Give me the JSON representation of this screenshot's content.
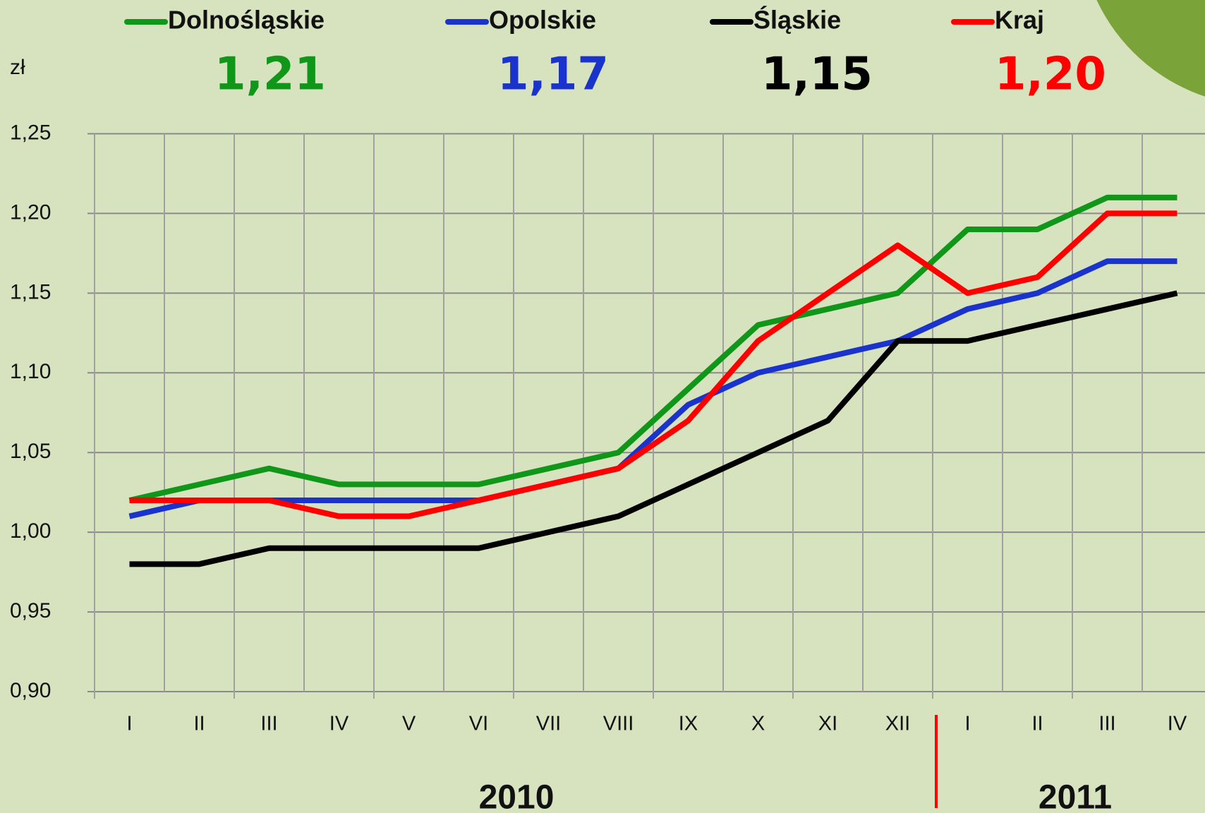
{
  "chart_data": {
    "type": "line",
    "y_unit": "zł",
    "categories": [
      "I",
      "II",
      "III",
      "IV",
      "V",
      "VI",
      "VII",
      "VIII",
      "IX",
      "X",
      "XI",
      "XII",
      "I",
      "II",
      "III",
      "IV"
    ],
    "year_labels": [
      "2010",
      "2011"
    ],
    "series": [
      {
        "name": "Dolnośląskie",
        "color": "#109618",
        "latest_label": "1,21",
        "values": [
          1.02,
          1.03,
          1.04,
          1.03,
          1.03,
          1.03,
          1.04,
          1.05,
          1.09,
          1.13,
          1.14,
          1.15,
          1.19,
          1.19,
          1.21,
          1.21
        ]
      },
      {
        "name": "Opolskie",
        "color": "#1a33cc",
        "latest_label": "1,17",
        "values": [
          1.01,
          1.02,
          1.02,
          1.02,
          1.02,
          1.02,
          1.03,
          1.04,
          1.08,
          1.1,
          1.11,
          1.12,
          1.14,
          1.15,
          1.17,
          1.17
        ]
      },
      {
        "name": "Śląskie",
        "color": "#000000",
        "latest_label": "1,15",
        "values": [
          0.98,
          0.98,
          0.99,
          0.99,
          0.99,
          0.99,
          1.0,
          1.01,
          1.03,
          1.05,
          1.07,
          1.12,
          1.12,
          1.13,
          1.14,
          1.15
        ]
      },
      {
        "name": "Kraj",
        "color": "#ff0000",
        "latest_label": "1,20",
        "values": [
          1.02,
          1.02,
          1.02,
          1.01,
          1.01,
          1.02,
          1.03,
          1.04,
          1.07,
          1.12,
          1.15,
          1.18,
          1.15,
          1.16,
          1.2,
          1.2
        ]
      }
    ],
    "ylim": [
      0.9,
      1.25
    ],
    "yticks": [
      {
        "value": 0.9,
        "label": "0,90"
      },
      {
        "value": 0.95,
        "label": "0,95"
      },
      {
        "value": 1.0,
        "label": "1,00"
      },
      {
        "value": 1.05,
        "label": "1,05"
      },
      {
        "value": 1.1,
        "label": "1,10"
      },
      {
        "value": 1.15,
        "label": "1,15"
      },
      {
        "value": 1.2,
        "label": "1,20"
      },
      {
        "value": 1.25,
        "label": "1,25"
      }
    ],
    "grid": true
  }
}
